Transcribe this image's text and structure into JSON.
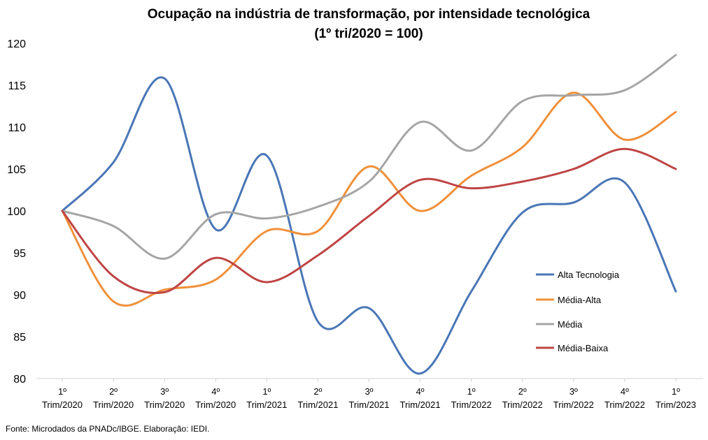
{
  "chart_data": {
    "type": "line",
    "title": [
      "Ocupação na indústria de transformação, por intensidade tecnológica",
      "(1º tri/2020 = 100)"
    ],
    "xlabel": "",
    "ylabel": "",
    "ylim": [
      80,
      120
    ],
    "yticks": [
      80,
      85,
      90,
      95,
      100,
      105,
      110,
      115,
      120
    ],
    "grid": false,
    "legend_placement": "right",
    "categories": [
      [
        "1º",
        "Trim/2020"
      ],
      [
        "2º",
        "Trim/2020"
      ],
      [
        "3º",
        "Trim/2020"
      ],
      [
        "4º",
        "Trim/2020"
      ],
      [
        "1º",
        "Trim/2021"
      ],
      [
        "2º",
        "Trim/2021"
      ],
      [
        "3º",
        "Trim/2021"
      ],
      [
        "4º",
        "Trim/2021"
      ],
      [
        "1º",
        "Trim/2022"
      ],
      [
        "2º",
        "Trim/2022"
      ],
      [
        "3º",
        "Trim/2022"
      ],
      [
        "4º",
        "Trim/2022"
      ],
      [
        "1º",
        "Trim/2023"
      ]
    ],
    "series": [
      {
        "name": "Alta Tecnologia",
        "color": "#4a76b6",
        "values": [
          100,
          105.8,
          115.8,
          97.8,
          106.6,
          86.8,
          88.4,
          80.6,
          90.4,
          99.8,
          101.0,
          103.4,
          90.4
        ]
      },
      {
        "name": "Média-Alta",
        "color": "#f0903a",
        "values": [
          100,
          89.2,
          90.6,
          91.8,
          97.6,
          97.6,
          105.3,
          100.0,
          104.2,
          107.6,
          114.1,
          108.5,
          111.8
        ]
      },
      {
        "name": "Média",
        "color": "#a5a5a5",
        "values": [
          100,
          98.2,
          94.3,
          99.6,
          99.1,
          100.5,
          103.5,
          110.6,
          107.2,
          113.1,
          113.8,
          114.4,
          118.6
        ]
      },
      {
        "name": "Média-Baixa",
        "color": "#bf4444",
        "values": [
          100,
          92.2,
          90.3,
          94.4,
          91.5,
          94.7,
          99.4,
          103.7,
          102.7,
          103.5,
          105.0,
          107.4,
          105.0
        ]
      }
    ]
  },
  "source_text": "Fonte: Microdados da PNADc/IBGE. Elaboração: IEDI."
}
